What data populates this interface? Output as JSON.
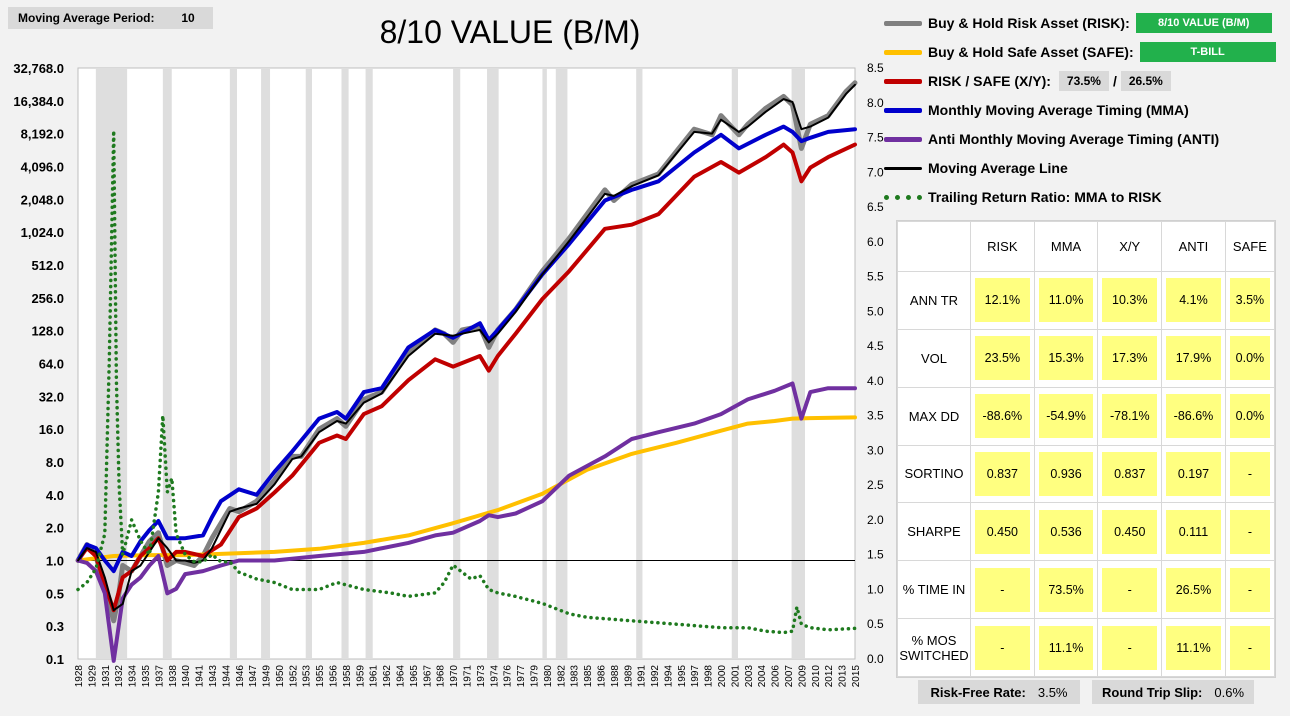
{
  "header": {
    "ma_period_label": "Moving Average Period:",
    "ma_period_value": "10",
    "title": "8/10 VALUE (B/M)"
  },
  "legend": {
    "risk_label": "Buy & Hold Risk Asset (RISK):",
    "risk_value": "8/10 VALUE (B/M)",
    "safe_label": "Buy & Hold Safe Asset (SAFE):",
    "safe_value": "T-BILL",
    "xy_label": "RISK / SAFE (X/Y):",
    "xy_x": "73.5%",
    "xy_sep": "/",
    "xy_y": "26.5%",
    "mma_label": "Monthly Moving Average Timing (MMA)",
    "anti_label": "Anti Monthly Moving Average Timing (ANTI)",
    "ma_line_label": "Moving Average Line",
    "ratio_label": "Trailing Return Ratio: MMA to RISK"
  },
  "colors": {
    "risk": "#808080",
    "safe": "#ffc000",
    "xy": "#c00000",
    "mma": "#0000cc",
    "anti": "#7030a0",
    "ma_line": "#000000",
    "ratio": "#1f7a1f",
    "pill_green": "#22b14c",
    "cell_yellow": "#ffff80"
  },
  "stats": {
    "headers": [
      "",
      "RISK",
      "MMA",
      "X/Y",
      "ANTI",
      "SAFE"
    ],
    "rows": [
      {
        "label": "ANN TR",
        "values": [
          "12.1%",
          "11.0%",
          "10.3%",
          "4.1%",
          "3.5%"
        ]
      },
      {
        "label": "VOL",
        "values": [
          "23.5%",
          "15.3%",
          "17.3%",
          "17.9%",
          "0.0%"
        ]
      },
      {
        "label": "MAX DD",
        "values": [
          "-88.6%",
          "-54.9%",
          "-78.1%",
          "-86.6%",
          "0.0%"
        ]
      },
      {
        "label": "SORTINO",
        "values": [
          "0.837",
          "0.936",
          "0.837",
          "0.197",
          "-"
        ]
      },
      {
        "label": "SHARPE",
        "values": [
          "0.450",
          "0.536",
          "0.450",
          "0.111",
          "-"
        ]
      },
      {
        "label": "% TIME IN",
        "values": [
          "-",
          "73.5%",
          "-",
          "26.5%",
          "-"
        ]
      },
      {
        "label": "% MOS SWITCHED",
        "values": [
          "-",
          "11.1%",
          "-",
          "11.1%",
          "-"
        ]
      }
    ]
  },
  "footer": {
    "rf_label": "Risk-Free Rate:",
    "rf_value": "3.5%",
    "slip_label": "Round Trip Slip:",
    "slip_value": "0.6%"
  },
  "chart_data": {
    "type": "line",
    "title": "8/10 VALUE (B/M)",
    "y_scale": "log2",
    "y_ticks": [
      "32,768.0",
      "16,384.0",
      "8,192.0",
      "4,096.0",
      "2,048.0",
      "1,024.0",
      "512.0",
      "256.0",
      "128.0",
      "64.0",
      "32.0",
      "16.0",
      "8.0",
      "4.0",
      "2.0",
      "1.0",
      "0.5",
      "0.3",
      "0.1"
    ],
    "y2_ticks": [
      "8.5",
      "8.0",
      "7.5",
      "7.0",
      "6.5",
      "6.0",
      "5.5",
      "5.0",
      "4.5",
      "4.0",
      "3.5",
      "3.0",
      "2.5",
      "2.0",
      "1.5",
      "1.0",
      "0.5",
      "0.0"
    ],
    "y2lim": [
      0,
      8.5
    ],
    "x_ticks": [
      "1928",
      "1929",
      "1931",
      "1932",
      "1934",
      "1935",
      "1937",
      "1938",
      "1940",
      "1941",
      "1943",
      "1944",
      "1946",
      "1947",
      "1949",
      "1950",
      "1952",
      "1953",
      "1955",
      "1956",
      "1958",
      "1959",
      "1961",
      "1962",
      "1964",
      "1965",
      "1967",
      "1968",
      "1970",
      "1971",
      "1973",
      "1974",
      "1976",
      "1977",
      "1979",
      "1980",
      "1982",
      "1983",
      "1985",
      "1986",
      "1988",
      "1989",
      "1991",
      "1992",
      "1994",
      "1995",
      "1997",
      "1998",
      "2000",
      "2001",
      "2003",
      "2004",
      "2006",
      "2007",
      "2009",
      "2010",
      "2012",
      "2013",
      "2015"
    ],
    "xlim": [
      1928,
      2015
    ],
    "shaded_periods": [
      [
        1930.0,
        1933.5
      ],
      [
        1937.5,
        1938.5
      ],
      [
        1945.0,
        1945.8
      ],
      [
        1948.5,
        1949.5
      ],
      [
        1953.5,
        1954.2
      ],
      [
        1957.5,
        1958.3
      ],
      [
        1960.2,
        1961.0
      ],
      [
        1970.0,
        1970.8
      ],
      [
        1973.8,
        1975.1
      ],
      [
        1980.0,
        1980.5
      ],
      [
        1981.5,
        1982.8
      ],
      [
        1990.5,
        1991.2
      ],
      [
        2001.2,
        2001.9
      ],
      [
        2007.9,
        2009.4
      ]
    ],
    "series": [
      {
        "name": "Buy & Hold Risk Asset (RISK)",
        "color": "#808080",
        "axis": "left",
        "x": [
          1928,
          1929,
          1930,
          1931,
          1932,
          1932.5,
          1933,
          1934,
          1935,
          1936,
          1937,
          1938,
          1939,
          1940,
          1941,
          1942,
          1943,
          1945,
          1946,
          1948,
          1950,
          1952,
          1953,
          1955,
          1957,
          1958,
          1960,
          1962,
          1965,
          1968,
          1969,
          1970,
          1971,
          1973,
          1974,
          1975,
          1977,
          1980,
          1983,
          1987,
          1988,
          1990,
          1993,
          1997,
          1999,
          2000,
          2002,
          2003,
          2005,
          2007,
          2008,
          2009,
          2010,
          2012,
          2014,
          2015
        ],
        "y": [
          1.0,
          1.4,
          1.1,
          0.55,
          0.28,
          0.45,
          0.9,
          0.8,
          1.1,
          1.5,
          1.8,
          0.9,
          1.0,
          0.95,
          0.9,
          1.1,
          1.6,
          3.0,
          2.8,
          3.5,
          5.5,
          9,
          9,
          16,
          20,
          17,
          30,
          35,
          80,
          130,
          120,
          100,
          130,
          140,
          90,
          130,
          200,
          450,
          900,
          2500,
          2000,
          2800,
          3500,
          9000,
          8000,
          12000,
          8000,
          10000,
          14000,
          18000,
          15000,
          6000,
          10000,
          12000,
          20000,
          24000
        ]
      },
      {
        "name": "Buy & Hold Safe Asset (SAFE)",
        "color": "#ffc000",
        "axis": "left",
        "x": [
          1928,
          1932,
          1936,
          1940,
          1944,
          1950,
          1955,
          1960,
          1965,
          1970,
          1975,
          1980,
          1985,
          1990,
          1995,
          2000,
          2003,
          2006,
          2008,
          2010,
          2015
        ],
        "y": [
          1.0,
          1.1,
          1.12,
          1.12,
          1.15,
          1.2,
          1.28,
          1.45,
          1.7,
          2.2,
          2.9,
          4.1,
          6.8,
          9.5,
          12,
          15.5,
          18,
          19,
          20,
          20.2,
          20.5
        ]
      },
      {
        "name": "RISK / SAFE (X/Y)",
        "color": "#c00000",
        "axis": "left",
        "x": [
          1928,
          1929,
          1930,
          1931,
          1932,
          1933,
          1934,
          1935,
          1936,
          1937,
          1938,
          1939,
          1940,
          1942,
          1944,
          1946,
          1948,
          1950,
          1952,
          1955,
          1957,
          1958,
          1960,
          1962,
          1965,
          1968,
          1970,
          1973,
          1974,
          1975,
          1977,
          1980,
          1983,
          1987,
          1990,
          1993,
          1997,
          2000,
          2002,
          2005,
          2007,
          2008,
          2009,
          2010,
          2012,
          2015
        ],
        "y": [
          1.0,
          1.3,
          1.1,
          0.6,
          0.35,
          0.7,
          0.8,
          1.1,
          1.3,
          1.6,
          1.0,
          1.2,
          1.2,
          1.1,
          1.4,
          2.5,
          3.0,
          4.2,
          6,
          12,
          14,
          13,
          22,
          26,
          45,
          70,
          60,
          75,
          55,
          75,
          120,
          250,
          450,
          1100,
          1200,
          1500,
          3300,
          4500,
          3600,
          5000,
          6500,
          5500,
          3000,
          4000,
          5000,
          6500
        ]
      },
      {
        "name": "Monthly Moving Average Timing (MMA)",
        "color": "#0000cc",
        "axis": "left",
        "x": [
          1928,
          1929,
          1930,
          1931,
          1932,
          1933,
          1934,
          1935,
          1936,
          1937,
          1938,
          1940,
          1942,
          1943,
          1944,
          1946,
          1948,
          1950,
          1952,
          1955,
          1957,
          1958,
          1960,
          1962,
          1965,
          1968,
          1970,
          1973,
          1974,
          1975,
          1977,
          1980,
          1983,
          1987,
          1990,
          1993,
          1997,
          2000,
          2002,
          2005,
          2007,
          2008,
          2009,
          2010,
          2012,
          2015
        ],
        "y": [
          1.0,
          1.4,
          1.3,
          1.0,
          0.8,
          1.2,
          1.1,
          1.5,
          1.9,
          2.3,
          1.6,
          1.6,
          1.7,
          2.5,
          3.5,
          4.5,
          4.0,
          6.5,
          10,
          20,
          23,
          20,
          35,
          38,
          90,
          130,
          110,
          150,
          105,
          130,
          200,
          420,
          800,
          2000,
          2500,
          3000,
          5500,
          8000,
          6000,
          8000,
          9500,
          8500,
          7000,
          7500,
          8500,
          9000
        ]
      },
      {
        "name": "Anti Monthly Moving Average Timing (ANTI)",
        "color": "#7030a0",
        "axis": "left",
        "x": [
          1928,
          1929,
          1930,
          1931,
          1932,
          1933,
          1934,
          1935,
          1936,
          1937,
          1938,
          1939,
          1940,
          1942,
          1944,
          1946,
          1948,
          1950,
          1955,
          1960,
          1965,
          1968,
          1970,
          1973,
          1974,
          1975,
          1977,
          1980,
          1983,
          1987,
          1990,
          1993,
          1997,
          2000,
          2003,
          2006,
          2008,
          2009,
          2010,
          2012,
          2015
        ],
        "y": [
          1.0,
          0.95,
          0.8,
          0.5,
          0.12,
          0.45,
          0.6,
          0.7,
          0.9,
          1.1,
          0.5,
          0.55,
          0.75,
          0.8,
          0.9,
          1.0,
          1.0,
          1.0,
          1.1,
          1.2,
          1.45,
          1.7,
          1.8,
          2.3,
          2.6,
          2.5,
          2.7,
          3.5,
          6,
          9,
          13,
          15,
          18,
          22,
          30,
          36,
          42,
          20,
          35,
          38,
          38
        ]
      },
      {
        "name": "Moving Average Line",
        "color": "#000000",
        "axis": "left",
        "x": [
          1928,
          1929,
          1930,
          1931,
          1932,
          1933,
          1934,
          1935,
          1936,
          1937,
          1938,
          1939,
          1940,
          1941,
          1942,
          1943,
          1945,
          1946,
          1948,
          1950,
          1952,
          1953,
          1955,
          1957,
          1958,
          1960,
          1962,
          1965,
          1968,
          1970,
          1971,
          1973,
          1974,
          1975,
          1977,
          1980,
          1983,
          1987,
          1988,
          1990,
          1993,
          1997,
          1999,
          2000,
          2002,
          2003,
          2005,
          2007,
          2008,
          2009,
          2010,
          2012,
          2014,
          2015
        ],
        "y": [
          1.0,
          1.3,
          1.2,
          0.7,
          0.35,
          0.4,
          0.8,
          0.9,
          1.2,
          1.6,
          1.3,
          1.0,
          1.0,
          0.95,
          1.0,
          1.3,
          2.8,
          3.0,
          3.3,
          5,
          8.5,
          9,
          15,
          19,
          18,
          28,
          34,
          75,
          120,
          115,
          120,
          130,
          100,
          120,
          190,
          420,
          850,
          2300,
          2200,
          2700,
          3400,
          8500,
          8200,
          11000,
          8500,
          9500,
          13000,
          17000,
          16000,
          9000,
          9500,
          11500,
          19000,
          23000
        ]
      },
      {
        "name": "Trailing Return Ratio: MMA to RISK",
        "color": "#1f7a1f",
        "axis": "right",
        "style": "dotted",
        "x": [
          1928,
          1929,
          1930,
          1931,
          1931.5,
          1932,
          1932.3,
          1932.6,
          1933,
          1934,
          1935,
          1936,
          1937,
          1937.5,
          1938,
          1938.5,
          1939,
          1940,
          1941,
          1942,
          1943,
          1944,
          1945,
          1946,
          1948,
          1950,
          1952,
          1955,
          1957,
          1960,
          1963,
          1965,
          1968,
          1969,
          1970,
          1971,
          1972,
          1973,
          1974,
          1975,
          1977,
          1980,
          1983,
          1985,
          1990,
          1995,
          2000,
          2003,
          2005,
          2007,
          2008,
          2008.5,
          2009,
          2010,
          2012,
          2015
        ],
        "y": [
          1.0,
          1.1,
          1.3,
          1.8,
          4.3,
          7.6,
          4.0,
          2.5,
          1.5,
          2.0,
          1.7,
          1.5,
          2.4,
          3.5,
          2.4,
          2.6,
          1.8,
          1.5,
          1.4,
          1.4,
          1.5,
          1.4,
          1.4,
          1.25,
          1.15,
          1.1,
          1.0,
          1.0,
          1.1,
          1.0,
          0.95,
          0.9,
          0.95,
          1.1,
          1.35,
          1.25,
          1.15,
          1.2,
          1.0,
          0.95,
          0.9,
          0.8,
          0.65,
          0.6,
          0.55,
          0.5,
          0.45,
          0.45,
          0.4,
          0.38,
          0.4,
          0.75,
          0.5,
          0.45,
          0.42,
          0.44
        ]
      }
    ]
  }
}
